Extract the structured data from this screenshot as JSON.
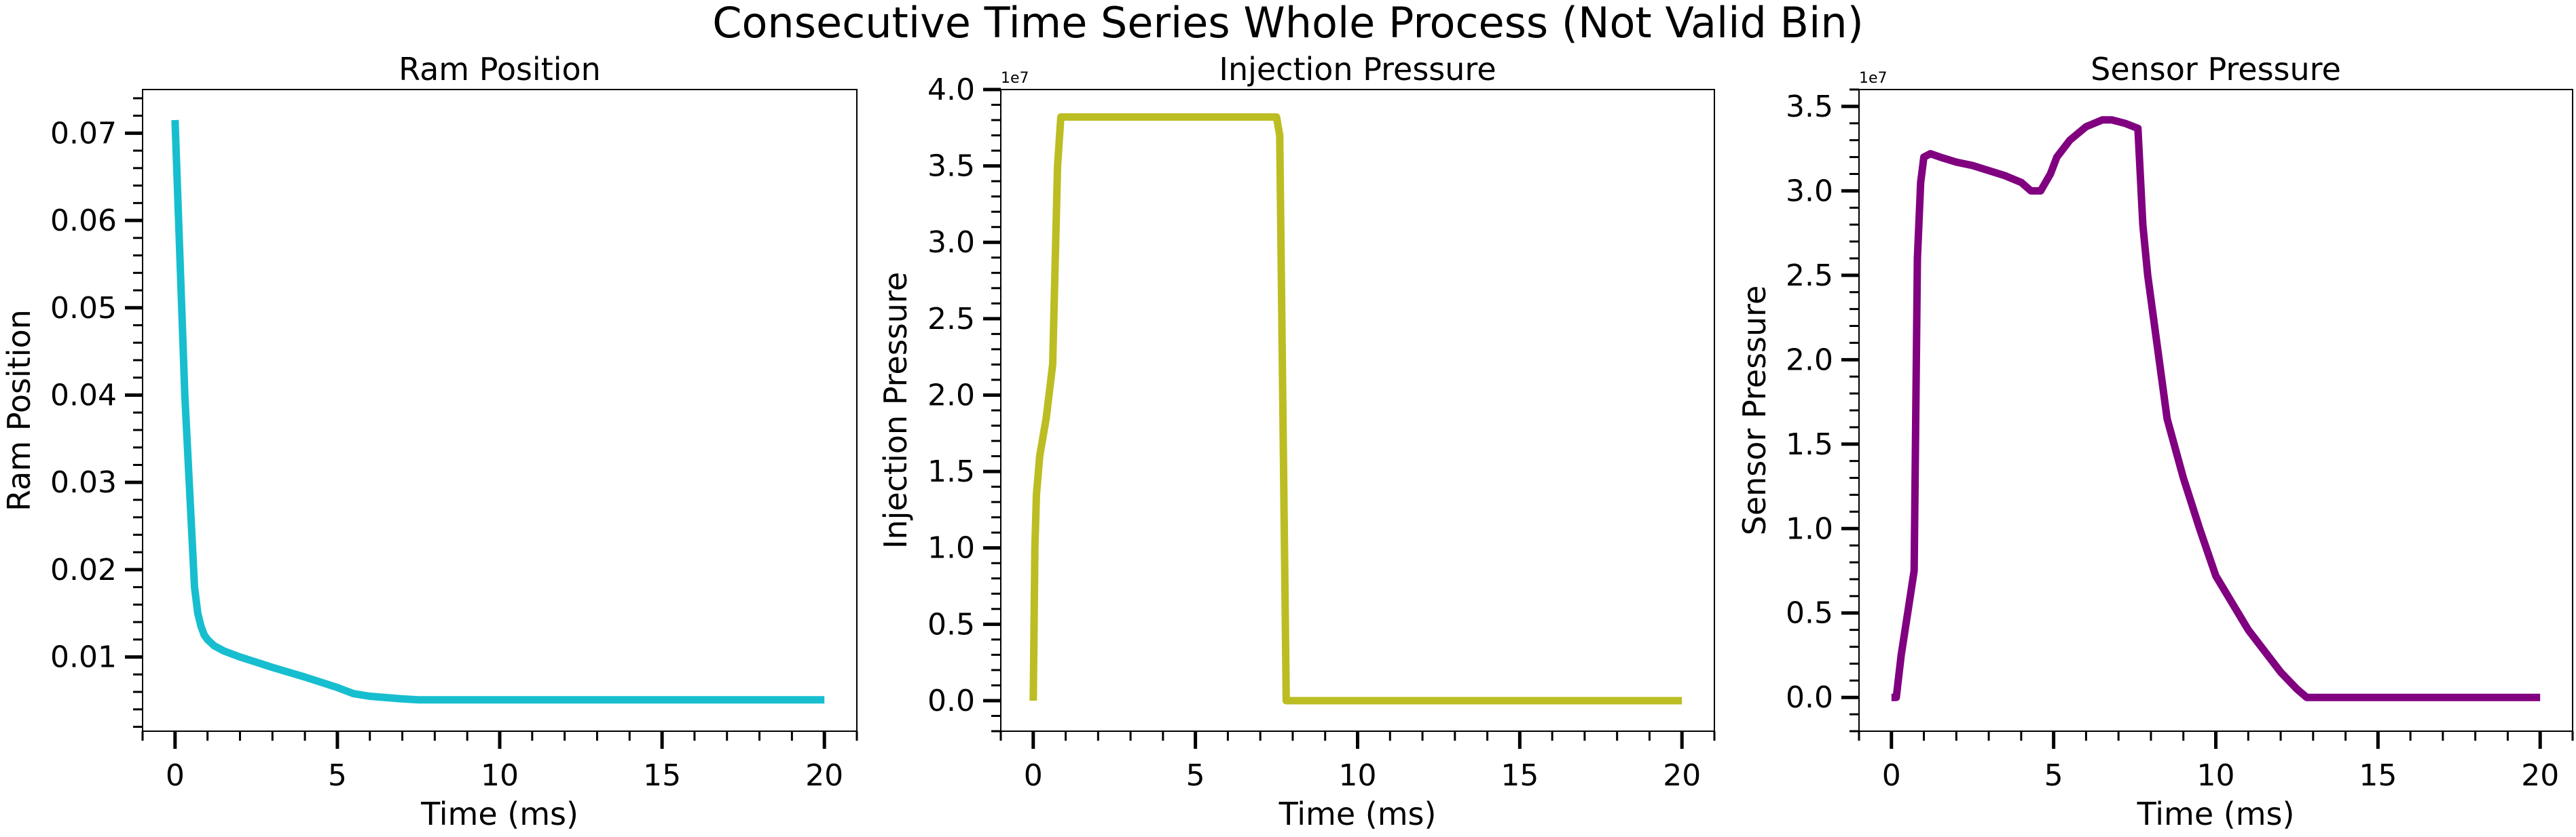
{
  "suptitle": "Consecutive Time Series Whole Process (Not Valid Bin)",
  "chart_data": [
    {
      "type": "line",
      "title": "Ram Position",
      "xlabel": "Time (ms)",
      "ylabel": "Ram Position",
      "color": "#17becf",
      "xlim": [
        -1,
        21
      ],
      "ylim": [
        0.0015,
        0.075
      ],
      "xticks": [
        0,
        5,
        10,
        15,
        20
      ],
      "xtick_labels": [
        "0",
        "5",
        "10",
        "15",
        "20"
      ],
      "yticks": [
        0.01,
        0.02,
        0.03,
        0.04,
        0.05,
        0.06,
        0.07
      ],
      "ytick_labels": [
        "0.01",
        "0.02",
        "0.03",
        "0.04",
        "0.05",
        "0.06",
        "0.07"
      ],
      "offset_text": "",
      "series": [
        {
          "x": [
            0,
            0.3,
            0.6,
            0.7,
            0.8,
            0.9,
            1.0,
            1.2,
            1.5,
            2,
            3,
            4,
            5,
            5.5,
            6,
            7,
            7.5,
            8,
            10,
            15,
            20
          ],
          "y": [
            0.0715,
            0.04,
            0.018,
            0.015,
            0.0135,
            0.0125,
            0.012,
            0.0113,
            0.0107,
            0.01,
            0.0088,
            0.0077,
            0.0065,
            0.0058,
            0.0055,
            0.0052,
            0.0051,
            0.0051,
            0.0051,
            0.0051,
            0.0051
          ]
        }
      ]
    },
    {
      "type": "line",
      "title": "Injection Pressure",
      "xlabel": "Time (ms)",
      "ylabel": "Injection Pressure",
      "color": "#bcbd22",
      "xlim": [
        -1,
        21
      ],
      "ylim": [
        -0.2,
        4.0
      ],
      "xticks": [
        0,
        5,
        10,
        15,
        20
      ],
      "xtick_labels": [
        "0",
        "5",
        "10",
        "15",
        "20"
      ],
      "yticks": [
        0.0,
        0.5,
        1.0,
        1.5,
        2.0,
        2.5,
        3.0,
        3.5,
        4.0
      ],
      "ytick_labels": [
        "0.0",
        "0.5",
        "1.0",
        "1.5",
        "2.0",
        "2.5",
        "3.0",
        "3.5",
        "4.0"
      ],
      "offset_text": "1e7",
      "series": [
        {
          "x": [
            0,
            0.05,
            0.1,
            0.2,
            0.4,
            0.6,
            0.75,
            0.85,
            1.0,
            7.5,
            7.6,
            7.8,
            8.0,
            20
          ],
          "y": [
            0.0,
            1.0,
            1.35,
            1.6,
            1.85,
            2.2,
            3.5,
            3.82,
            3.82,
            3.82,
            3.7,
            0.0,
            0.0,
            0.0
          ]
        }
      ]
    },
    {
      "type": "line",
      "title": "Sensor Pressure",
      "xlabel": "Time (ms)",
      "ylabel": "Sensor Pressure",
      "color": "#800080",
      "xlim": [
        -1,
        21
      ],
      "ylim": [
        -0.2,
        3.6
      ],
      "xticks": [
        0,
        5,
        10,
        15,
        20
      ],
      "xtick_labels": [
        "0",
        "5",
        "10",
        "15",
        "20"
      ],
      "yticks": [
        0.0,
        0.5,
        1.0,
        1.5,
        2.0,
        2.5,
        3.0,
        3.5
      ],
      "ytick_labels": [
        "0.0",
        "0.5",
        "1.0",
        "1.5",
        "2.0",
        "2.5",
        "3.0",
        "3.5"
      ],
      "offset_text": "1e7",
      "series": [
        {
          "x": [
            0,
            0.15,
            0.3,
            0.5,
            0.7,
            0.8,
            0.9,
            1.0,
            1.2,
            1.5,
            2,
            2.5,
            3,
            3.5,
            4,
            4.3,
            4.6,
            4.9,
            5.1,
            5.5,
            6,
            6.5,
            6.8,
            7.2,
            7.6,
            7.75,
            7.9,
            8.5,
            9,
            9.5,
            10,
            11,
            12,
            12.5,
            12.8,
            13,
            15,
            20
          ],
          "y": [
            0.0,
            0.0,
            0.25,
            0.5,
            0.75,
            2.6,
            3.05,
            3.2,
            3.22,
            3.2,
            3.17,
            3.15,
            3.12,
            3.09,
            3.05,
            3.0,
            3.0,
            3.1,
            3.2,
            3.3,
            3.38,
            3.42,
            3.42,
            3.4,
            3.37,
            2.8,
            2.5,
            1.65,
            1.3,
            1.0,
            0.72,
            0.4,
            0.15,
            0.05,
            0.0,
            0.0,
            0.0,
            0.0
          ]
        }
      ]
    }
  ]
}
